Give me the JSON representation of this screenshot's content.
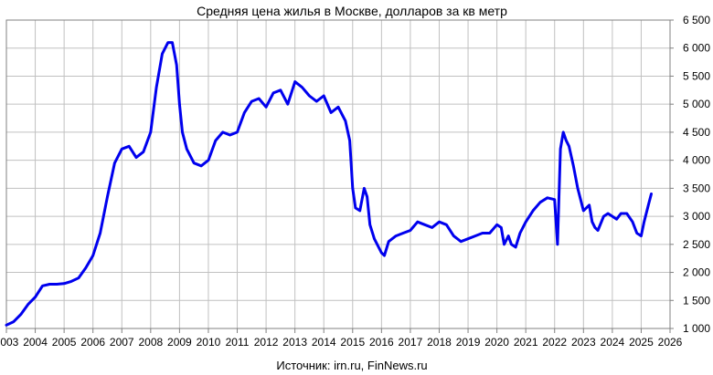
{
  "chart_data": {
    "type": "line",
    "title": "Средняя цена жилья в Москве, долларов за кв метр",
    "source": "Источник: irn.ru, FinNews.ru",
    "xlim": [
      2003,
      2026
    ],
    "ylim": [
      1000,
      6500
    ],
    "x_ticks": [
      "2003",
      "2004",
      "2005",
      "2006",
      "2007",
      "2008",
      "2009",
      "2010",
      "2011",
      "2012",
      "2013",
      "2014",
      "2015",
      "2016",
      "2017",
      "2018",
      "2019",
      "2020",
      "2021",
      "2022",
      "2023",
      "2024",
      "2025",
      "2026"
    ],
    "y_ticks": [
      "1 000",
      "1 500",
      "2 000",
      "2 500",
      "3 000",
      "3 500",
      "4 000",
      "4 500",
      "5 000",
      "5 500",
      "6 000",
      "6 500"
    ],
    "grid": true,
    "legend": "none",
    "line_color": "#0000ee",
    "series": [
      {
        "x": [
          2003.0,
          2003.25,
          2003.5,
          2003.75,
          2004.0,
          2004.25,
          2004.5,
          2004.75,
          2005.0,
          2005.25,
          2005.5,
          2005.75,
          2006.0,
          2006.25,
          2006.5,
          2006.75,
          2007.0,
          2007.25,
          2007.5,
          2007.75,
          2008.0,
          2008.2,
          2008.4,
          2008.6,
          2008.75,
          2008.9,
          2009.0,
          2009.1,
          2009.25,
          2009.5,
          2009.75,
          2010.0,
          2010.25,
          2010.5,
          2010.75,
          2011.0,
          2011.25,
          2011.5,
          2011.75,
          2012.0,
          2012.25,
          2012.5,
          2012.75,
          2013.0,
          2013.25,
          2013.5,
          2013.75,
          2014.0,
          2014.25,
          2014.5,
          2014.75,
          2014.9,
          2015.0,
          2015.1,
          2015.25,
          2015.4,
          2015.5,
          2015.6,
          2015.75,
          2016.0,
          2016.1,
          2016.25,
          2016.5,
          2016.75,
          2017.0,
          2017.25,
          2017.5,
          2017.75,
          2018.0,
          2018.25,
          2018.5,
          2018.75,
          2019.0,
          2019.25,
          2019.5,
          2019.75,
          2020.0,
          2020.15,
          2020.25,
          2020.4,
          2020.5,
          2020.65,
          2020.8,
          2021.0,
          2021.25,
          2021.5,
          2021.75,
          2022.0,
          2022.1,
          2022.2,
          2022.3,
          2022.4,
          2022.5,
          2022.65,
          2022.8,
          2023.0,
          2023.2,
          2023.3,
          2023.4,
          2023.5,
          2023.7,
          2023.85,
          2024.0,
          2024.15,
          2024.3,
          2024.5,
          2024.7,
          2024.85,
          2025.0,
          2025.1,
          2025.25,
          2025.35
        ],
        "y": [
          1060,
          1120,
          1250,
          1430,
          1560,
          1760,
          1790,
          1790,
          1800,
          1840,
          1900,
          2080,
          2300,
          2700,
          3350,
          3950,
          4200,
          4250,
          4050,
          4150,
          4500,
          5300,
          5900,
          6100,
          6100,
          5700,
          5000,
          4500,
          4200,
          3950,
          3900,
          4000,
          4350,
          4500,
          4450,
          4500,
          4850,
          5050,
          5100,
          4950,
          5200,
          5250,
          5000,
          5400,
          5300,
          5150,
          5050,
          5150,
          4850,
          4950,
          4700,
          4350,
          3500,
          3150,
          3100,
          3500,
          3350,
          2850,
          2600,
          2350,
          2300,
          2550,
          2650,
          2700,
          2750,
          2900,
          2850,
          2800,
          2900,
          2850,
          2650,
          2550,
          2600,
          2650,
          2700,
          2700,
          2850,
          2800,
          2500,
          2650,
          2500,
          2450,
          2700,
          2900,
          3100,
          3250,
          3330,
          3300,
          2500,
          4200,
          4500,
          4350,
          4250,
          3900,
          3500,
          3100,
          3200,
          2900,
          2800,
          2750,
          3000,
          3050,
          3000,
          2950,
          3050,
          3050,
          2900,
          2700,
          2650,
          2900,
          3200,
          3400
        ]
      }
    ]
  }
}
